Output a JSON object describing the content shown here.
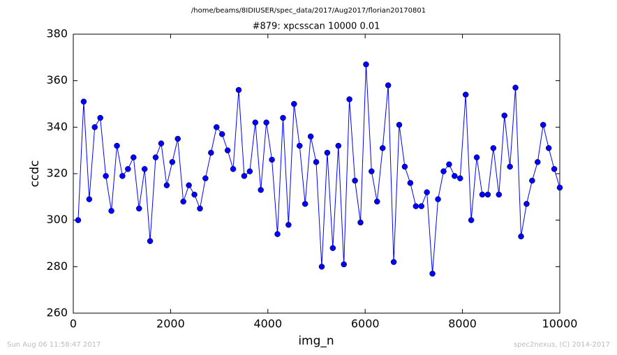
{
  "chart_data": {
    "type": "line",
    "suptitle": "/home/beams/8IDIUSER/spec_data/2017/Aug2017/florian20170801",
    "title": "#879: xpcsscan 10000 0.01",
    "xlabel": "img_n",
    "ylabel": "ccdc",
    "footer_left": "Sun Aug 06 11:58:47 2017",
    "footer_right": "spec2nexus, (C) 2014-2017",
    "xlim": [
      0,
      10000
    ],
    "xticks": [
      0,
      2000,
      4000,
      6000,
      8000,
      10000
    ],
    "ylim": [
      260,
      380
    ],
    "yticks": [
      260,
      280,
      300,
      320,
      340,
      360,
      380
    ],
    "color": "#0000ff",
    "marker": "circle",
    "x": [
      100,
      214,
      328,
      441,
      555,
      669,
      783,
      897,
      1010,
      1124,
      1238,
      1352,
      1466,
      1579,
      1693,
      1807,
      1921,
      2035,
      2148,
      2262,
      2376,
      2490,
      2604,
      2717,
      2831,
      2945,
      3059,
      3173,
      3286,
      3400,
      3514,
      3628,
      3742,
      3855,
      3969,
      4083,
      4197,
      4311,
      4424,
      4538,
      4652,
      4766,
      4880,
      4993,
      5107,
      5221,
      5335,
      5449,
      5562,
      5676,
      5790,
      5904,
      6018,
      6131,
      6245,
      6359,
      6473,
      6587,
      6700,
      6814,
      6928,
      7042,
      7156,
      7269,
      7383,
      7497,
      7611,
      7725,
      7838,
      7952,
      8066,
      8180,
      8294,
      8407,
      8521,
      8635,
      8749,
      8863,
      8976,
      9090,
      9204,
      9318,
      9432,
      9545,
      9659,
      9773,
      9887,
      10000
    ],
    "values": [
      300,
      351,
      309,
      340,
      344,
      319,
      304,
      332,
      319,
      322,
      327,
      305,
      322,
      291,
      327,
      333,
      315,
      325,
      335,
      308,
      315,
      311,
      305,
      318,
      329,
      340,
      337,
      330,
      322,
      356,
      319,
      321,
      342,
      313,
      342,
      326,
      294,
      344,
      298,
      350,
      332,
      307,
      336,
      325,
      280,
      329,
      288,
      332,
      281,
      352,
      317,
      299,
      367,
      321,
      308,
      331,
      358,
      282,
      341,
      323,
      316,
      306,
      306,
      312,
      277,
      309,
      321,
      324,
      319,
      318,
      354,
      300,
      327,
      311,
      311,
      331,
      311,
      345,
      323,
      357,
      293,
      307,
      317,
      325,
      341,
      331,
      322,
      314
    ]
  }
}
